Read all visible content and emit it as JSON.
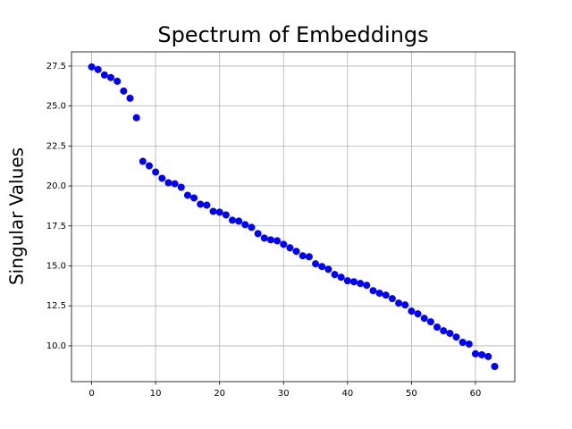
{
  "chart_data": {
    "type": "scatter",
    "title": "Spectrum of Embeddings",
    "y_label": "Singular Values",
    "x": [
      0,
      1,
      2,
      3,
      4,
      5,
      6,
      7,
      8,
      9,
      10,
      11,
      12,
      13,
      14,
      15,
      16,
      17,
      18,
      19,
      20,
      21,
      22,
      23,
      24,
      25,
      26,
      27,
      28,
      29,
      30,
      31,
      32,
      33,
      34,
      35,
      36,
      37,
      38,
      39,
      40,
      41,
      42,
      43,
      44,
      45,
      46,
      47,
      48,
      49,
      50,
      51,
      52,
      53,
      54,
      55,
      56,
      57,
      58,
      59,
      60,
      61,
      62,
      63
    ],
    "series": [
      {
        "color": "#0000ff",
        "values": [
          27.45,
          27.28,
          26.94,
          26.78,
          26.55,
          25.94,
          25.49,
          24.27,
          21.54,
          21.26,
          20.87,
          20.48,
          20.2,
          20.14,
          19.92,
          19.42,
          19.25,
          18.86,
          18.8,
          18.41,
          18.36,
          18.19,
          17.86,
          17.8,
          17.58,
          17.41,
          17.02,
          16.74,
          16.63,
          16.57,
          16.35,
          16.13,
          15.91,
          15.63,
          15.57,
          15.13,
          14.96,
          14.79,
          14.46,
          14.29,
          14.07,
          14.01,
          13.9,
          13.79,
          13.45,
          13.29,
          13.17,
          12.95,
          12.67,
          12.56,
          12.17,
          12.0,
          11.72,
          11.5,
          11.17,
          10.94,
          10.78,
          10.55,
          10.22,
          10.11,
          9.5,
          9.44,
          9.33,
          8.71
        ]
      }
    ],
    "xlim": [
      -3.15,
      66.15
    ],
    "xticks": [
      0,
      10,
      20,
      30,
      40,
      50,
      60
    ],
    "ylim": [
      7.76,
      28.39
    ],
    "yticks": [
      {
        "value": 10,
        "label": "10.0"
      },
      12.5,
      {
        "value": 15,
        "label": "15.0"
      },
      17.5,
      {
        "value": 20,
        "label": "20.0"
      },
      22.5,
      {
        "value": 25,
        "label": "25.0"
      },
      27.5
    ],
    "grid": true
  }
}
